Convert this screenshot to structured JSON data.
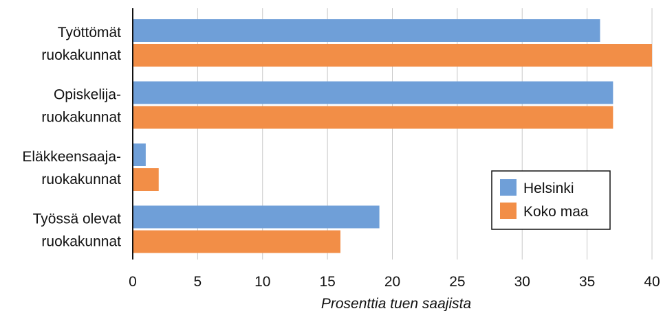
{
  "chart_data": {
    "type": "bar",
    "orientation": "horizontal",
    "categories": [
      [
        "Työttömät",
        "ruokakunnat"
      ],
      [
        "Opiskelija-",
        "ruokakunnat"
      ],
      [
        "Eläkkeensaaja-",
        "ruokakunnat"
      ],
      [
        "Työssä olevat",
        "ruokakunnat"
      ]
    ],
    "series": [
      {
        "name": "Helsinki",
        "values": [
          36,
          37,
          1,
          19
        ],
        "color": "#6f9fd8"
      },
      {
        "name": "Koko maa",
        "values": [
          40,
          37,
          2,
          16
        ],
        "color": "#f28e47"
      }
    ],
    "xlabel": "Prosenttia tuen saajista",
    "xlim": [
      0,
      40
    ],
    "xticks": [
      "0",
      "5",
      "10",
      "15",
      "20",
      "25",
      "30",
      "35",
      "40"
    ],
    "grid": "vertical",
    "legend_position": "bottom-right"
  }
}
